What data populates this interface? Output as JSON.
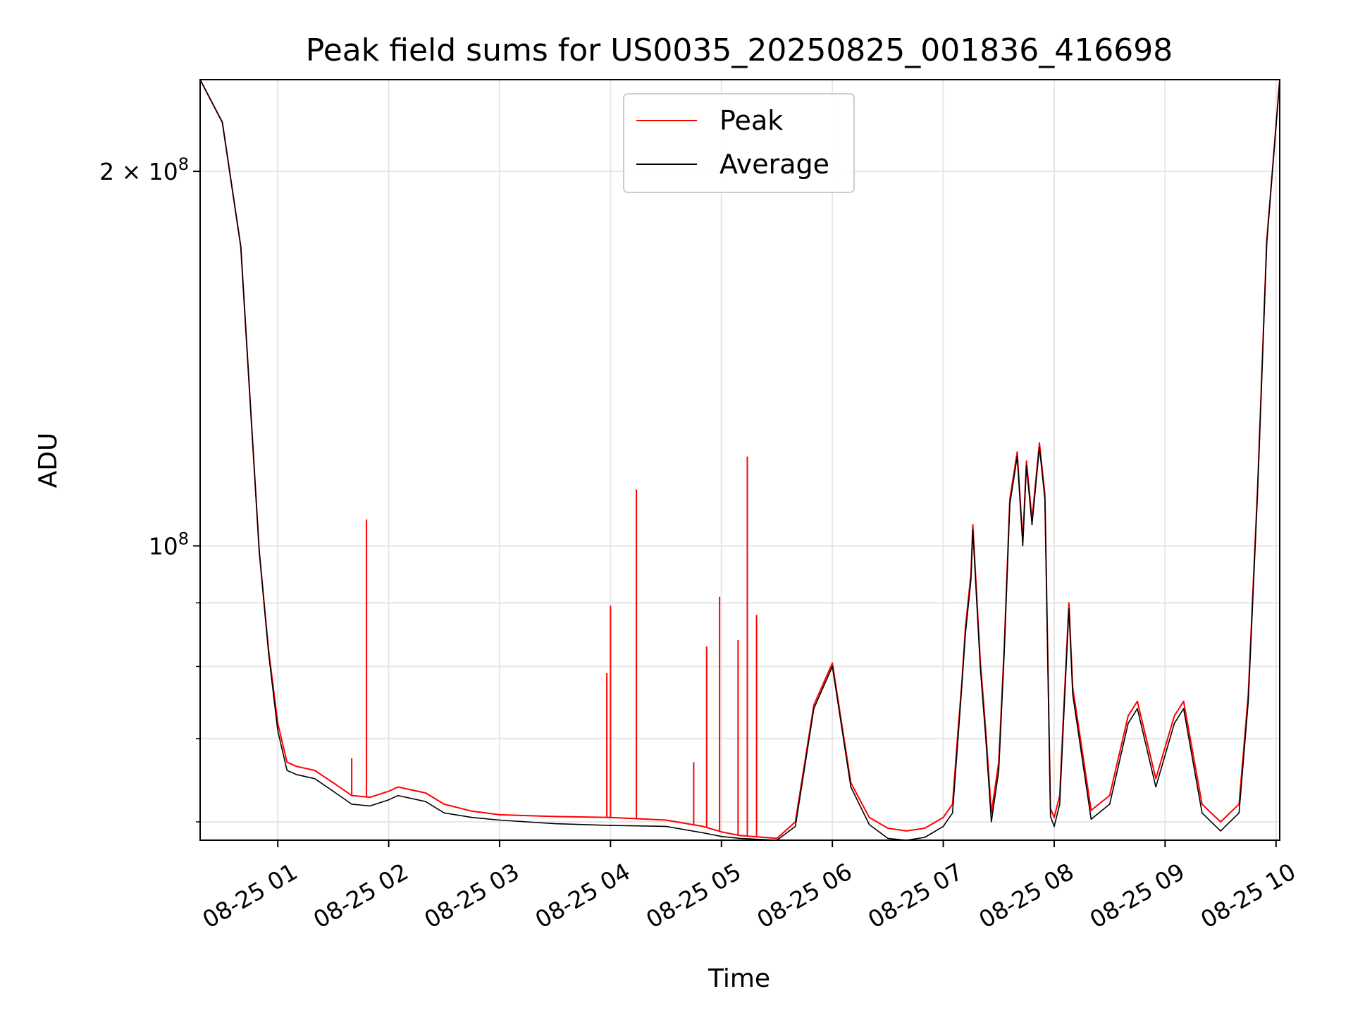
{
  "chart_data": {
    "type": "line",
    "title": "Peak field sums for US0035_20250825_001836_416698",
    "xlabel": "Time",
    "ylabel": "ADU",
    "x_unit": "hours",
    "y_scale": "log",
    "grid": true,
    "legend_placement": "upper-center",
    "xlim": [
      "08-25 00:18",
      "08-25 10:02"
    ],
    "ylim": [
      58000000,
      237000000
    ],
    "x_ticks": [
      "08-25 01",
      "08-25 02",
      "08-25 03",
      "08-25 04",
      "08-25 05",
      "08-25 06",
      "08-25 07",
      "08-25 08",
      "08-25 09",
      "08-25 10"
    ],
    "y_ticks": [
      {
        "value": 200000000,
        "label": "2 × 10^8",
        "mantissa": "2 × 10",
        "exp": "8"
      },
      {
        "value": 100000000,
        "label": "10^8",
        "mantissa": "10",
        "exp": "8"
      }
    ],
    "y_minor_ticks": [
      60000000,
      70000000,
      80000000,
      90000000
    ],
    "series": [
      {
        "name": "Average",
        "color": "#000000",
        "x": [
          "08-25 00:18",
          "08-25 00:30",
          "08-25 00:40",
          "08-25 00:50",
          "08-25 00:55",
          "08-25 01:00",
          "08-25 01:05",
          "08-25 01:10",
          "08-25 01:20",
          "08-25 01:30",
          "08-25 01:40",
          "08-25 01:50",
          "08-25 02:00",
          "08-25 02:05",
          "08-25 02:20",
          "08-25 02:30",
          "08-25 02:45",
          "08-25 03:00",
          "08-25 03:30",
          "08-25 04:00",
          "08-25 04:30",
          "08-25 04:50",
          "08-25 05:00",
          "08-25 05:10",
          "08-25 05:30",
          "08-25 05:40",
          "08-25 05:50",
          "08-25 06:00",
          "08-25 06:10",
          "08-25 06:20",
          "08-25 06:30",
          "08-25 06:40",
          "08-25 06:50",
          "08-25 07:00",
          "08-25 07:05",
          "08-25 07:08",
          "08-25 07:10",
          "08-25 07:12",
          "08-25 07:15",
          "08-25 07:16",
          "08-25 07:20",
          "08-25 07:23",
          "08-25 07:26",
          "08-25 07:30",
          "08-25 07:33",
          "08-25 07:36",
          "08-25 07:40",
          "08-25 07:43",
          "08-25 07:45",
          "08-25 07:48",
          "08-25 07:52",
          "08-25 07:55",
          "08-25 07:58",
          "08-25 08:00",
          "08-25 08:03",
          "08-25 08:05",
          "08-25 08:08",
          "08-25 08:10",
          "08-25 08:20",
          "08-25 08:30",
          "08-25 08:40",
          "08-25 08:45",
          "08-25 08:55",
          "08-25 09:05",
          "08-25 09:10",
          "08-25 09:20",
          "08-25 09:30",
          "08-25 09:40",
          "08-25 09:45",
          "08-25 09:50",
          "08-25 09:55",
          "08-25 10:02"
        ],
        "values": [
          237000000,
          219000000,
          174000000,
          99000000,
          82000000,
          71000000,
          66000000,
          65500000,
          65000000,
          63500000,
          62000000,
          61800000,
          62500000,
          63000000,
          62300000,
          61000000,
          60500000,
          60200000,
          59800000,
          59600000,
          59500000,
          58800000,
          58400000,
          58200000,
          58000000,
          59500000,
          74000000,
          80000000,
          64000000,
          59700000,
          58200000,
          58000000,
          58300000,
          59500000,
          61000000,
          70000000,
          77000000,
          85000000,
          94000000,
          103000000,
          80000000,
          70000000,
          60000000,
          66000000,
          82000000,
          108000000,
          118000000,
          100000000,
          116000000,
          104000000,
          120000000,
          109000000,
          60600000,
          59500000,
          62000000,
          72000000,
          89000000,
          76000000,
          60300000,
          62000000,
          72000000,
          74000000,
          64000000,
          72000000,
          74000000,
          61000000,
          59000000,
          61000000,
          75000000,
          110000000,
          175000000,
          237000000
        ]
      },
      {
        "name": "Peak",
        "color": "#ff0000",
        "x": [
          "08-25 00:18",
          "08-25 00:30",
          "08-25 00:40",
          "08-25 00:50",
          "08-25 00:55",
          "08-25 01:00",
          "08-25 01:05",
          "08-25 01:10",
          "08-25 01:20",
          "08-25 01:30",
          "08-25 01:40",
          "08-25 01:50",
          "08-25 02:00",
          "08-25 02:05",
          "08-25 02:20",
          "08-25 02:30",
          "08-25 02:45",
          "08-25 03:00",
          "08-25 03:30",
          "08-25 04:00",
          "08-25 04:30",
          "08-25 04:50",
          "08-25 05:00",
          "08-25 05:10",
          "08-25 05:30",
          "08-25 05:40",
          "08-25 05:50",
          "08-25 06:00",
          "08-25 06:10",
          "08-25 06:20",
          "08-25 06:30",
          "08-25 06:40",
          "08-25 06:50",
          "08-25 07:00",
          "08-25 07:05",
          "08-25 07:08",
          "08-25 07:10",
          "08-25 07:12",
          "08-25 07:15",
          "08-25 07:16",
          "08-25 07:20",
          "08-25 07:23",
          "08-25 07:26",
          "08-25 07:30",
          "08-25 07:33",
          "08-25 07:36",
          "08-25 07:40",
          "08-25 07:43",
          "08-25 07:45",
          "08-25 07:48",
          "08-25 07:52",
          "08-25 07:55",
          "08-25 07:58",
          "08-25 08:00",
          "08-25 08:03",
          "08-25 08:05",
          "08-25 08:08",
          "08-25 08:10",
          "08-25 08:20",
          "08-25 08:30",
          "08-25 08:40",
          "08-25 08:45",
          "08-25 08:55",
          "08-25 09:05",
          "08-25 09:10",
          "08-25 09:20",
          "08-25 09:30",
          "08-25 09:40",
          "08-25 09:45",
          "08-25 09:50",
          "08-25 09:55",
          "08-25 10:02"
        ],
        "values": [
          237000000,
          219000000,
          174000000,
          99000000,
          82500000,
          72000000,
          67000000,
          66500000,
          66000000,
          64500000,
          63000000,
          62800000,
          63500000,
          64000000,
          63300000,
          62000000,
          61200000,
          60800000,
          60600000,
          60500000,
          60200000,
          59500000,
          58900000,
          58500000,
          58200000,
          60000000,
          74500000,
          80500000,
          64500000,
          60500000,
          59300000,
          59000000,
          59300000,
          60500000,
          62000000,
          71000000,
          77500000,
          86000000,
          95000000,
          104000000,
          81000000,
          71000000,
          61000000,
          67000000,
          83000000,
          109000000,
          119000000,
          101000000,
          117000000,
          105000000,
          121000000,
          110000000,
          61500000,
          60500000,
          63000000,
          73000000,
          90000000,
          77000000,
          61300000,
          63000000,
          73000000,
          75000000,
          65000000,
          73000000,
          75000000,
          62000000,
          60000000,
          62000000,
          76000000,
          111000000,
          176000000,
          237000000
        ],
        "spikes": [
          {
            "x": "08-25 01:40",
            "y": 67500000
          },
          {
            "x": "08-25 01:48",
            "y": 105000000
          },
          {
            "x": "08-25 03:58",
            "y": 79000000
          },
          {
            "x": "08-25 04:00",
            "y": 89500000
          },
          {
            "x": "08-25 04:14",
            "y": 111000000
          },
          {
            "x": "08-25 04:45",
            "y": 67000000
          },
          {
            "x": "08-25 04:52",
            "y": 83000000
          },
          {
            "x": "08-25 04:59",
            "y": 91000000
          },
          {
            "x": "08-25 05:09",
            "y": 84000000
          },
          {
            "x": "08-25 05:14",
            "y": 118000000
          },
          {
            "x": "08-25 05:19",
            "y": 88000000
          }
        ]
      }
    ]
  }
}
